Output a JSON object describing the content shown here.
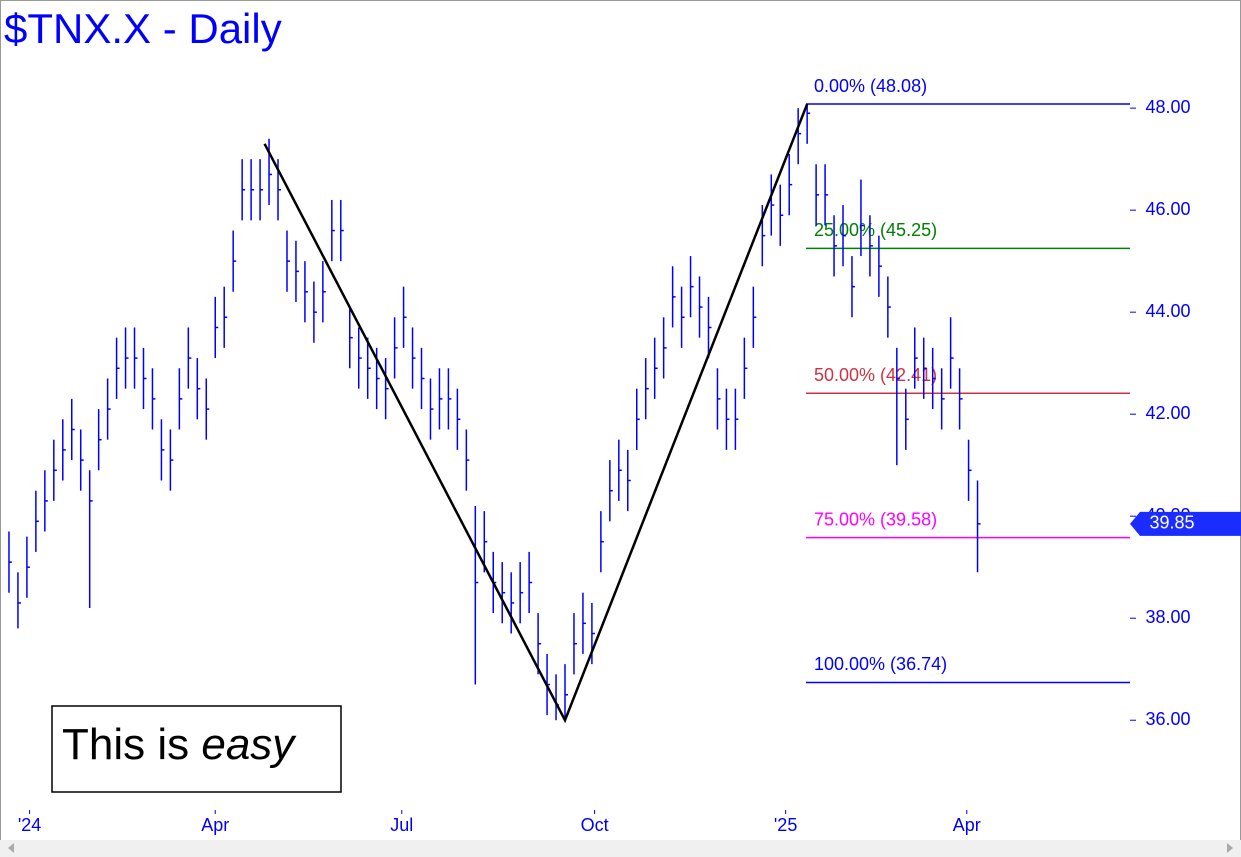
{
  "chart_data": {
    "type": "ohlc",
    "title": "$TNX.X - Daily",
    "color": "#0000ff",
    "xlim": [
      -1,
      125
    ],
    "xticks": [
      {
        "value": 2.3,
        "label": "'24"
      },
      {
        "value": 23,
        "label": "Apr"
      },
      {
        "value": 43.8,
        "label": "Jul"
      },
      {
        "value": 65.3,
        "label": "Oct"
      },
      {
        "value": 86.6,
        "label": "'25"
      },
      {
        "value": 106.8,
        "label": "Apr"
      }
    ],
    "ylim": [
      34.24,
      50.12
    ],
    "yticks": [
      {
        "value": 36,
        "label": "36.00"
      },
      {
        "value": 38,
        "label": "38.00"
      },
      {
        "value": 40,
        "label": "40.00"
      },
      {
        "value": 42,
        "label": "42.00"
      },
      {
        "value": 44,
        "label": "44.00"
      },
      {
        "value": 46,
        "label": "46.00"
      },
      {
        "value": 48,
        "label": "48.00"
      }
    ],
    "high": [
      39.7,
      38.9,
      39.6,
      40.5,
      40.9,
      41.5,
      41.9,
      42.3,
      41.7,
      40.9,
      42.1,
      42.7,
      43.5,
      43.7,
      43.7,
      43.3,
      42.9,
      41.9,
      41.7,
      42.9,
      43.7,
      43.1,
      42.7,
      44.3,
      44.5,
      45.6,
      47.0,
      47.0,
      47.0,
      47.4,
      47.0,
      45.6,
      45.4,
      45.0,
      44.6,
      45.0,
      46.2,
      46.2,
      44.1,
      43.7,
      43.5,
      43.3,
      43.1,
      43.9,
      44.5,
      43.7,
      43.3,
      42.7,
      42.9,
      42.9,
      42.5,
      41.7,
      40.2,
      40.1,
      39.3,
      39.1,
      38.9,
      39.1,
      39.3,
      38.1,
      37.3,
      36.9,
      37.1,
      38.1,
      38.5,
      38.3,
      40.1,
      41.1,
      41.5,
      41.3,
      42.5,
      43.1,
      43.5,
      43.9,
      44.9,
      44.5,
      45.1,
      44.7,
      44.3,
      42.9,
      42.5,
      42.5,
      43.5,
      44.5,
      46.1,
      46.7,
      46.5,
      47.1,
      48.0,
      48.08,
      46.9,
      46.9,
      45.9,
      46.1,
      45.1,
      46.6,
      45.9,
      45.5,
      44.7,
      43.3,
      42.5,
      43.7,
      43.5,
      43.3,
      42.9,
      43.9,
      42.9,
      41.5,
      40.7
    ],
    "low": [
      38.5,
      37.8,
      38.4,
      39.3,
      39.7,
      40.3,
      40.7,
      41.1,
      40.5,
      38.2,
      40.9,
      41.5,
      42.3,
      42.5,
      42.5,
      42.1,
      41.7,
      40.7,
      40.5,
      41.7,
      42.5,
      41.9,
      41.5,
      43.1,
      43.3,
      44.4,
      45.8,
      45.8,
      45.8,
      46.1,
      45.8,
      44.4,
      44.2,
      43.8,
      43.4,
      43.8,
      45.0,
      45.0,
      42.9,
      42.5,
      42.3,
      42.1,
      41.9,
      42.7,
      43.3,
      42.5,
      42.1,
      41.5,
      41.7,
      41.7,
      41.3,
      40.5,
      36.7,
      38.9,
      38.1,
      37.9,
      37.7,
      37.9,
      38.1,
      36.9,
      36.1,
      36.0,
      36.0,
      36.9,
      37.3,
      37.1,
      38.9,
      39.9,
      40.3,
      40.1,
      41.3,
      41.9,
      42.3,
      42.7,
      43.7,
      43.3,
      43.9,
      43.5,
      43.1,
      41.7,
      41.3,
      41.3,
      42.3,
      43.3,
      44.9,
      45.5,
      45.3,
      45.9,
      46.9,
      47.3,
      45.7,
      45.7,
      44.7,
      44.9,
      43.9,
      45.1,
      44.7,
      44.3,
      43.5,
      41.0,
      41.3,
      42.5,
      42.3,
      42.1,
      41.7,
      42.5,
      41.7,
      40.3,
      38.9
    ],
    "close": [
      39.1,
      38.3,
      39.0,
      39.9,
      40.3,
      40.9,
      41.3,
      41.7,
      41.1,
      40.3,
      41.5,
      42.1,
      42.9,
      43.1,
      43.1,
      42.7,
      42.3,
      41.3,
      41.1,
      42.3,
      43.1,
      42.5,
      42.1,
      43.7,
      43.9,
      45.0,
      46.4,
      46.4,
      46.4,
      46.7,
      46.4,
      45.0,
      44.8,
      44.4,
      44.0,
      44.4,
      45.6,
      45.6,
      43.5,
      43.1,
      42.9,
      42.7,
      42.5,
      43.3,
      43.9,
      43.1,
      42.7,
      42.1,
      42.3,
      42.3,
      41.9,
      41.1,
      38.7,
      39.5,
      38.7,
      38.5,
      38.3,
      38.5,
      38.7,
      37.5,
      36.7,
      36.3,
      36.5,
      37.5,
      37.9,
      37.7,
      39.5,
      40.5,
      40.9,
      40.7,
      41.9,
      42.5,
      42.9,
      43.3,
      44.3,
      43.9,
      44.5,
      44.1,
      43.7,
      42.3,
      41.9,
      41.9,
      42.9,
      43.9,
      45.5,
      46.1,
      45.9,
      46.5,
      47.5,
      47.9,
      46.3,
      46.3,
      45.3,
      45.5,
      44.5,
      45.7,
      45.3,
      44.9,
      44.1,
      42.7,
      41.9,
      43.1,
      42.9,
      42.7,
      42.3,
      43.1,
      42.3,
      40.9,
      39.85
    ],
    "last_price": 39.85,
    "trendline": {
      "x": [
        28.5,
        62,
        89
      ],
      "values": [
        47.3,
        36.0,
        48.08
      ],
      "color": "#000000"
    },
    "fib_levels": [
      {
        "label": "0.00% (48.08)",
        "value": 48.08,
        "color": "#0000ff"
      },
      {
        "label": "25.00% (45.25)",
        "value": 45.25,
        "color": "#008000"
      },
      {
        "label": "50.00% (42.41)",
        "value": 42.41,
        "color": "#cc3344"
      },
      {
        "label": "75.00% (39.58)",
        "value": 39.58,
        "color": "#ff00ff"
      },
      {
        "label": "100.00% (36.74)",
        "value": 36.74,
        "color": "#0000ff"
      }
    ],
    "annotation": {
      "text": "This is",
      "emphasis": "easy"
    }
  }
}
